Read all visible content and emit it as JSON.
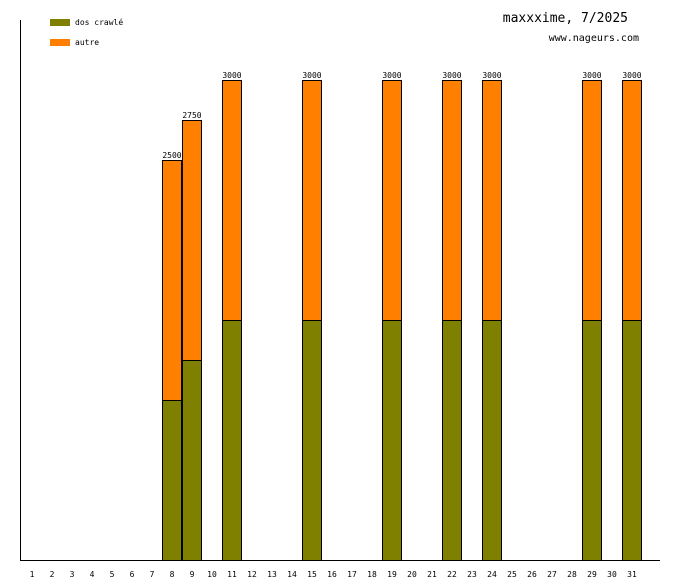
{
  "chart_data": {
    "type": "bar",
    "stacked": true,
    "title": "maxxxime, 7/2025",
    "subtitle": "www.nageurs.com",
    "categories": [
      "1",
      "2",
      "3",
      "4",
      "5",
      "6",
      "7",
      "8",
      "9",
      "10",
      "11",
      "12",
      "13",
      "14",
      "15",
      "16",
      "17",
      "18",
      "19",
      "20",
      "21",
      "22",
      "23",
      "24",
      "25",
      "26",
      "27",
      "28",
      "29",
      "30",
      "31"
    ],
    "series": [
      {
        "name": "dos crawlé",
        "color": "#808000",
        "values": [
          0,
          0,
          0,
          0,
          0,
          0,
          0,
          1000,
          1250,
          0,
          1500,
          0,
          0,
          0,
          1500,
          0,
          0,
          0,
          1500,
          0,
          0,
          1500,
          0,
          1500,
          0,
          0,
          0,
          0,
          1500,
          0,
          1500
        ]
      },
      {
        "name": "autre",
        "color": "#ff8000",
        "values": [
          0,
          0,
          0,
          0,
          0,
          0,
          0,
          1500,
          1500,
          0,
          1500,
          0,
          0,
          0,
          1500,
          0,
          0,
          0,
          1500,
          0,
          0,
          1500,
          0,
          1500,
          0,
          0,
          0,
          0,
          1500,
          0,
          1500
        ]
      }
    ],
    "totals": [
      0,
      0,
      0,
      0,
      0,
      0,
      0,
      2500,
      2750,
      0,
      3000,
      0,
      0,
      0,
      3000,
      0,
      0,
      0,
      3000,
      0,
      0,
      3000,
      0,
      3000,
      0,
      0,
      0,
      0,
      3000,
      0,
      3000
    ],
    "ylim": [
      0,
      3000
    ],
    "grid": false,
    "legend_position": "top-left"
  }
}
